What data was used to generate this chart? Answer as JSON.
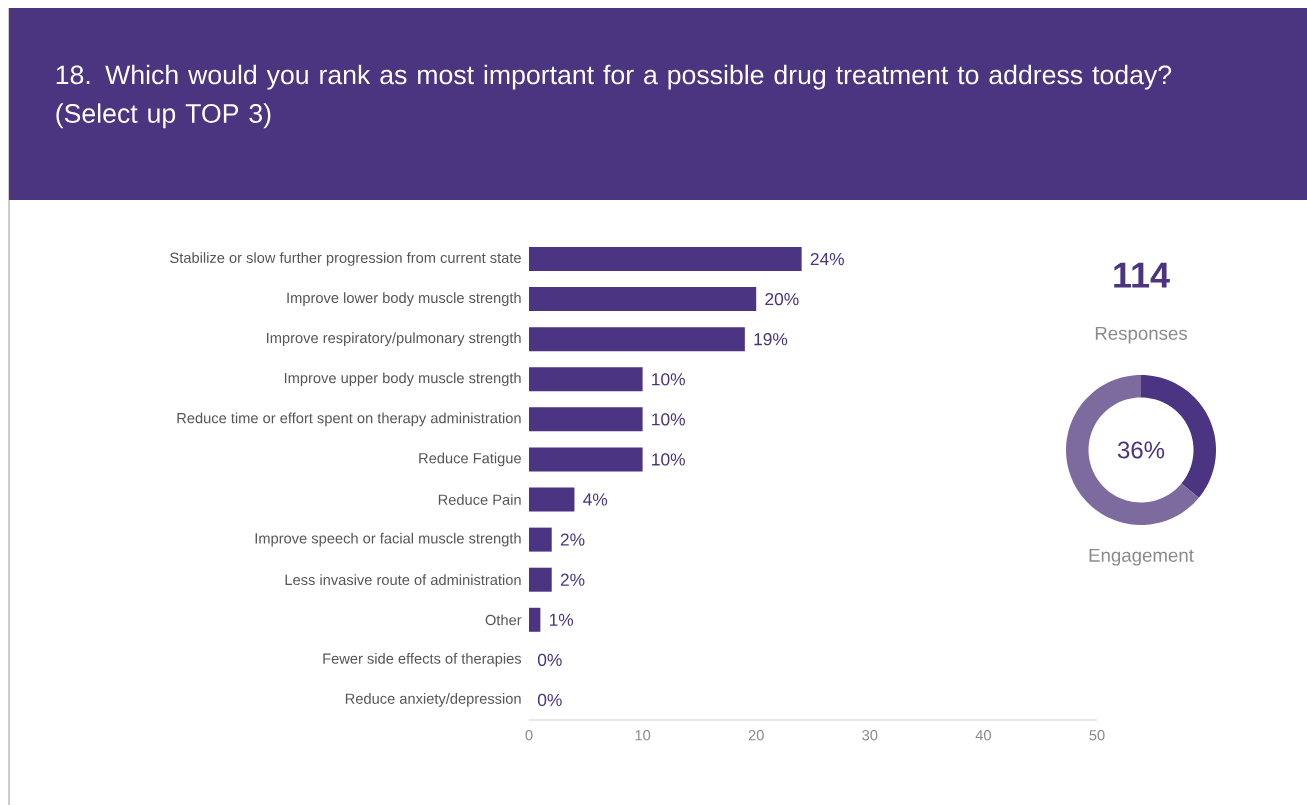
{
  "chart_data": [
    {
      "type": "bar",
      "orientation": "horizontal",
      "title": "18. Which would you rank as most important for a possible drug treatment to address today? (Select up TOP 3)",
      "categories": [
        "Stabilize or slow further progression from current state",
        "Improve lower body muscle strength",
        "Improve respiratory/pulmonary strength",
        "Improve upper body muscle strength",
        "Reduce time or effort spent on therapy administration",
        "Reduce Fatigue",
        "Reduce Pain",
        "Improve speech or facial muscle strength",
        "Less invasive route of administration",
        "Other",
        "Fewer side effects of therapies",
        "Reduce anxiety/depression"
      ],
      "values": [
        24,
        20,
        19,
        10,
        10,
        10,
        4,
        2,
        2,
        1,
        0,
        0
      ],
      "value_labels": [
        "24%",
        "20%",
        "19%",
        "10%",
        "10%",
        "10%",
        "4%",
        "2%",
        "2%",
        "1%",
        "0%",
        "0%"
      ],
      "color": "#4b3582",
      "xlim": [
        0,
        50
      ],
      "xticks": [
        0,
        10,
        20,
        30,
        40,
        50
      ]
    },
    {
      "type": "donut",
      "categories": [
        null,
        null
      ],
      "values": [
        36,
        64
      ],
      "colors": [
        "#4b3582",
        "#7d6a9e"
      ],
      "annotations": [
        "114",
        "Responses",
        "36%",
        "Engagement"
      ]
    }
  ]
}
